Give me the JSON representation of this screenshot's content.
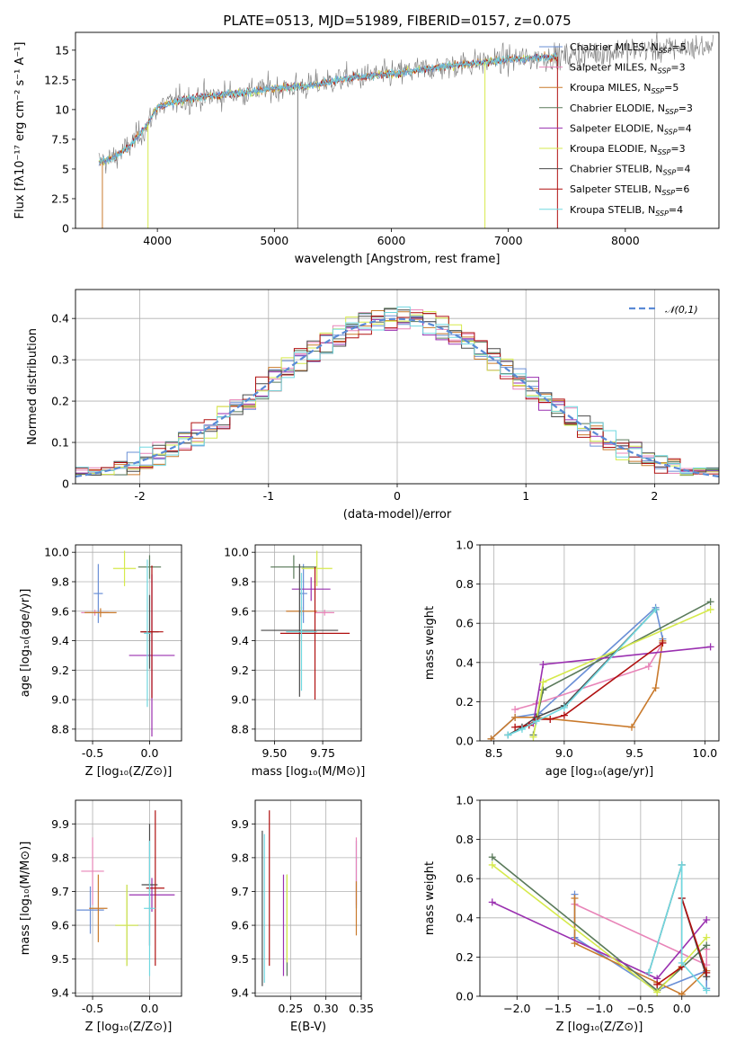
{
  "title": "PLATE=0513, MJD=51989, FIBERID=0157, z=0.075",
  "colors": {
    "Chabrier MILES": "#6a8fd6",
    "Salpeter MILES": "#e884b8",
    "Kroupa MILES": "#c97a2c",
    "Chabrier ELODIE": "#5a7a5a",
    "Salpeter ELODIE": "#9a30b0",
    "Kroupa ELODIE": "#d6ea4c",
    "Chabrier STELIB": "#4a4a4a",
    "Salpeter STELIB": "#b01010",
    "Kroupa STELIB": "#70d8e0",
    "gaussian": "#5a8ad6"
  },
  "legend": [
    {
      "model": "Chabrier MILES",
      "nssp": "5"
    },
    {
      "model": "Salpeter MILES",
      "nssp": "3"
    },
    {
      "model": "Kroupa MILES",
      "nssp": "5"
    },
    {
      "model": "Chabrier ELODIE",
      "nssp": "3"
    },
    {
      "model": "Salpeter ELODIE",
      "nssp": "4"
    },
    {
      "model": "Kroupa ELODIE",
      "nssp": "3"
    },
    {
      "model": "Chabrier STELIB",
      "nssp": "4"
    },
    {
      "model": "Salpeter STELIB",
      "nssp": "6"
    },
    {
      "model": "Kroupa STELIB",
      "nssp": "4"
    }
  ],
  "chart_data": [
    {
      "id": "spectrum",
      "type": "line",
      "xlabel": "wavelength [Angstrom, rest frame]",
      "ylabel": "Flux [fλ10⁻¹⁷ erg cm⁻² s⁻¹ A⁻¹]",
      "xlim": [
        3300,
        8800
      ],
      "ylim": [
        0,
        16.5
      ],
      "xticks": [
        4000,
        5000,
        6000,
        7000,
        8000
      ],
      "yticks": [
        0.0,
        2.5,
        5.0,
        7.5,
        10.0,
        12.5,
        15.0
      ],
      "grid": false,
      "continuum": {
        "x": [
          3500,
          3600,
          3750,
          3900,
          4000,
          4200,
          4500,
          4800,
          5000,
          5300,
          5600,
          6000,
          6500,
          7000,
          7500,
          8000,
          8500,
          8750
        ],
        "y": [
          5.6,
          5.8,
          6.8,
          8.5,
          10.2,
          10.8,
          11.2,
          11.5,
          11.8,
          12.0,
          12.6,
          13.0,
          13.7,
          14.2,
          14.5,
          15.0,
          15.2,
          15.3
        ]
      }
    },
    {
      "id": "residuals",
      "type": "line",
      "xlabel": "(data-model)/error",
      "ylabel": "Normed distribution",
      "xlim": [
        -2.5,
        2.5
      ],
      "ylim": [
        0,
        0.47
      ],
      "xticks": [
        -2,
        -1,
        0,
        1,
        2
      ],
      "yticks": [
        0.0,
        0.1,
        0.2,
        0.3,
        0.4
      ],
      "grid": true,
      "legend": "𝒩(0,1)",
      "bin_edges_from": -2.5,
      "bin_width": 0.1
    },
    {
      "id": "z-age",
      "type": "scatter",
      "xlabel": "Z [log₁₀(Z/Z⊙)]",
      "ylabel": "age  [log₁₀(age/yr)]",
      "xlim": [
        -0.65,
        0.28
      ],
      "ylim": [
        8.72,
        10.05
      ],
      "xticks": [
        "-0.5",
        "0.0"
      ],
      "yticks": [
        "8.8",
        "9.0",
        "9.2",
        "9.4",
        "9.6",
        "9.8",
        "10.0"
      ],
      "grid": true,
      "points": [
        {
          "model": "Chabrier MILES",
          "x": -0.45,
          "xerr": 0.04,
          "y": 9.72,
          "yerr": 0.2
        },
        {
          "model": "Salpeter MILES",
          "x": -0.48,
          "xerr": 0.12,
          "y": 9.59,
          "yerr": 0.02
        },
        {
          "model": "Kroupa MILES",
          "x": -0.43,
          "xerr": 0.14,
          "y": 9.59,
          "yerr": 0.03
        },
        {
          "model": "Chabrier ELODIE",
          "x": 0.0,
          "xerr": 0.1,
          "y": 9.9,
          "yerr": 0.08
        },
        {
          "model": "Salpeter ELODIE",
          "x": 0.02,
          "xerr": 0.2,
          "y": 9.3,
          "yerr": 0.55
        },
        {
          "model": "Kroupa ELODIE",
          "x": -0.22,
          "xerr": 0.1,
          "y": 9.89,
          "yerr": 0.12
        },
        {
          "model": "Chabrier STELIB",
          "x": 0.0,
          "xerr": 0.08,
          "y": 9.46,
          "yerr": 0.25
        },
        {
          "model": "Salpeter STELIB",
          "x": 0.02,
          "xerr": 0.1,
          "y": 9.46,
          "yerr": 0.45
        },
        {
          "model": "Kroupa STELIB",
          "x": -0.02,
          "xerr": 0.03,
          "y": 9.45,
          "yerr": 0.5
        }
      ]
    },
    {
      "id": "mass-age",
      "type": "scatter",
      "xlabel": "mass [log₁₀(M/M⊙)]",
      "ylabel": "",
      "xlim": [
        9.4,
        9.95
      ],
      "ylim": [
        8.72,
        10.05
      ],
      "xticks": [
        "9.50",
        "9.75"
      ],
      "yticks": [
        "8.8",
        "9.0",
        "9.2",
        "9.4",
        "9.6",
        "9.8",
        "10.0"
      ],
      "grid": true,
      "points": [
        {
          "model": "Chabrier MILES",
          "x": 9.65,
          "xerr": 0.02,
          "y": 9.72,
          "yerr": 0.2
        },
        {
          "model": "Salpeter MILES",
          "x": 9.76,
          "xerr": 0.05,
          "y": 9.59,
          "yerr": 0.02
        },
        {
          "model": "Kroupa MILES",
          "x": 9.64,
          "xerr": 0.08,
          "y": 9.6,
          "yerr": 0.03
        },
        {
          "model": "Chabrier ELODIE",
          "x": 9.6,
          "xerr": 0.12,
          "y": 9.9,
          "yerr": 0.08
        },
        {
          "model": "Salpeter ELODIE",
          "x": 9.69,
          "xerr": 0.1,
          "y": 9.75,
          "yerr": 0.08
        },
        {
          "model": "Kroupa ELODIE",
          "x": 9.72,
          "xerr": 0.08,
          "y": 9.89,
          "yerr": 0.12
        },
        {
          "model": "Chabrier STELIB",
          "x": 9.63,
          "xerr": 0.2,
          "y": 9.47,
          "yerr": 0.45
        },
        {
          "model": "Salpeter STELIB",
          "x": 9.71,
          "xerr": 0.18,
          "y": 9.45,
          "yerr": 0.45
        },
        {
          "model": "Kroupa STELIB",
          "x": 9.64,
          "xerr": 0.08,
          "y": 9.46,
          "yerr": 0.4
        }
      ]
    },
    {
      "id": "age-weight",
      "type": "line",
      "xlabel": "age  [log₁₀(age/yr)]",
      "ylabel": "mass weight",
      "xlim": [
        8.4,
        10.1
      ],
      "ylim": [
        0,
        1.0
      ],
      "xticks": [
        "8.5",
        "9.0",
        "9.5",
        "10.0"
      ],
      "yticks": [
        "0.0",
        "0.2",
        "0.4",
        "0.6",
        "0.8",
        "1.0"
      ],
      "grid": true,
      "series": [
        {
          "model": "Chabrier MILES",
          "x": [
            8.48,
            8.65,
            8.82,
            9.65,
            9.7
          ],
          "y": [
            0.01,
            0.12,
            0.14,
            0.68,
            0.52
          ]
        },
        {
          "model": "Salpeter MILES",
          "x": [
            8.65,
            8.8,
            9.6,
            9.7
          ],
          "y": [
            0.16,
            0.19,
            0.38,
            0.5
          ]
        },
        {
          "model": "Kroupa MILES",
          "x": [
            8.48,
            8.65,
            8.8,
            9.48,
            9.65,
            9.7
          ],
          "y": [
            0.01,
            0.12,
            0.12,
            0.07,
            0.27,
            0.51
          ]
        },
        {
          "model": "Chabrier ELODIE",
          "x": [
            8.78,
            8.85,
            10.04
          ],
          "y": [
            0.03,
            0.26,
            0.71
          ]
        },
        {
          "model": "Salpeter ELODIE",
          "x": [
            8.78,
            8.85,
            10.04
          ],
          "y": [
            0.09,
            0.39,
            0.48
          ]
        },
        {
          "model": "Kroupa ELODIE",
          "x": [
            8.78,
            8.85,
            10.04
          ],
          "y": [
            0.02,
            0.3,
            0.67
          ]
        },
        {
          "model": "Chabrier STELIB",
          "x": [
            8.6,
            8.7,
            8.8,
            9.0,
            9.65
          ],
          "y": [
            0.03,
            0.07,
            0.12,
            0.18,
            0.67
          ]
        },
        {
          "model": "Salpeter STELIB",
          "x": [
            8.65,
            8.75,
            8.8,
            8.9,
            9.0,
            9.7
          ],
          "y": [
            0.07,
            0.08,
            0.11,
            0.11,
            0.13,
            0.5
          ]
        },
        {
          "model": "Kroupa STELIB",
          "x": [
            8.6,
            8.7,
            8.8,
            9.0,
            9.65
          ],
          "y": [
            0.03,
            0.06,
            0.1,
            0.17,
            0.67
          ]
        }
      ]
    },
    {
      "id": "z-mass",
      "type": "scatter",
      "xlabel": "Z [log₁₀(Z/Z⊙)]",
      "ylabel": "mass [log₁₀(M/M⊙)]",
      "xlim": [
        -0.65,
        0.28
      ],
      "ylim": [
        9.39,
        9.97
      ],
      "xticks": [
        "-0.5",
        "0.0"
      ],
      "yticks": [
        "9.4",
        "9.5",
        "9.6",
        "9.7",
        "9.8",
        "9.9"
      ],
      "grid": true,
      "points": [
        {
          "model": "Chabrier MILES",
          "x": -0.52,
          "xerr": 0.12,
          "y": 9.645,
          "yerr": 0.07
        },
        {
          "model": "Salpeter MILES",
          "x": -0.5,
          "xerr": 0.1,
          "y": 9.76,
          "yerr": 0.1
        },
        {
          "model": "Kroupa MILES",
          "x": -0.45,
          "xerr": 0.08,
          "y": 9.65,
          "yerr": 0.1
        },
        {
          "model": "Chabrier ELODIE",
          "x": -0.2,
          "xerr": 0.1,
          "y": 9.6,
          "yerr": 0.12
        },
        {
          "model": "Salpeter ELODIE",
          "x": 0.02,
          "xerr": 0.2,
          "y": 9.69,
          "yerr": 0.05
        },
        {
          "model": "Kroupa ELODIE",
          "x": -0.2,
          "xerr": 0.1,
          "y": 9.6,
          "yerr": 0.12
        },
        {
          "model": "Chabrier STELIB",
          "x": 0.0,
          "xerr": 0.07,
          "y": 9.72,
          "yerr": 0.18
        },
        {
          "model": "Salpeter STELIB",
          "x": 0.05,
          "xerr": 0.08,
          "y": 9.71,
          "yerr": 0.23
        },
        {
          "model": "Kroupa STELIB",
          "x": 0.0,
          "xerr": 0.05,
          "y": 9.65,
          "yerr": 0.2
        }
      ]
    },
    {
      "id": "ebv-mass",
      "type": "scatter",
      "xlabel": "E(B-V)",
      "ylabel": "",
      "xlim": [
        0.2,
        0.35
      ],
      "ylim": [
        9.39,
        9.97
      ],
      "xticks": [
        "0.25",
        "0.30",
        "0.35"
      ],
      "yticks": [
        "9.4",
        "9.5",
        "9.6",
        "9.7",
        "9.8",
        "9.9"
      ],
      "grid": true,
      "points": [
        {
          "model": "Chabrier MILES",
          "x": 0.343,
          "y": 9.75,
          "yerr": 0.1
        },
        {
          "model": "Salpeter MILES",
          "x": 0.343,
          "y": 9.76,
          "yerr": 0.1
        },
        {
          "model": "Kroupa MILES",
          "x": 0.343,
          "y": 9.65,
          "yerr": 0.08
        },
        {
          "model": "Chabrier ELODIE",
          "x": 0.245,
          "y": 9.6,
          "yerr": 0.15
        },
        {
          "model": "Salpeter ELODIE",
          "x": 0.24,
          "y": 9.6,
          "yerr": 0.15
        },
        {
          "model": "Kroupa ELODIE",
          "x": 0.245,
          "y": 9.62,
          "yerr": 0.13
        },
        {
          "model": "Chabrier STELIB",
          "x": 0.21,
          "y": 9.65,
          "yerr": 0.23
        },
        {
          "model": "Salpeter STELIB",
          "x": 0.22,
          "y": 9.71,
          "yerr": 0.23
        },
        {
          "model": "Kroupa STELIB",
          "x": 0.213,
          "y": 9.65,
          "yerr": 0.22
        }
      ]
    },
    {
      "id": "z-weight",
      "type": "line",
      "xlabel": "Z [log₁₀(Z/Z⊙)]",
      "ylabel": "mass weight",
      "xlim": [
        -2.45,
        0.45
      ],
      "ylim": [
        0,
        1.0
      ],
      "xticks": [
        "−2.0",
        "−1.5",
        "−1.0",
        "−0.5",
        "0.0"
      ],
      "yticks": [
        "0.0",
        "0.2",
        "0.4",
        "0.6",
        "0.8",
        "1.0"
      ],
      "grid": true,
      "series": [
        {
          "model": "Chabrier MILES",
          "x": [
            -1.3,
            -1.3,
            -0.3,
            0.3,
            0.3
          ],
          "y": [
            0.52,
            0.3,
            0.03,
            0.13,
            0.04
          ]
        },
        {
          "model": "Salpeter MILES",
          "x": [
            -1.3,
            0.3,
            0.3
          ],
          "y": [
            0.47,
            0.16,
            0.24
          ]
        },
        {
          "model": "Kroupa MILES",
          "x": [
            -1.3,
            -1.3,
            -0.3,
            0.0,
            0.3
          ],
          "y": [
            0.5,
            0.27,
            0.07,
            0.01,
            0.13
          ]
        },
        {
          "model": "Chabrier ELODIE",
          "x": [
            -2.3,
            -0.3,
            0.3
          ],
          "y": [
            0.71,
            0.03,
            0.26
          ]
        },
        {
          "model": "Salpeter ELODIE",
          "x": [
            -2.3,
            -0.3,
            0.3
          ],
          "y": [
            0.48,
            0.09,
            0.39
          ]
        },
        {
          "model": "Kroupa ELODIE",
          "x": [
            -2.3,
            -0.3,
            0.3
          ],
          "y": [
            0.67,
            0.02,
            0.3
          ]
        },
        {
          "model": "Chabrier STELIB",
          "x": [
            -0.4,
            0.0,
            0.0,
            0.3
          ],
          "y": [
            0.12,
            0.67,
            0.5,
            0.1
          ]
        },
        {
          "model": "Salpeter STELIB",
          "x": [
            -0.3,
            0.0,
            0.0,
            0.3
          ],
          "y": [
            0.06,
            0.15,
            0.5,
            0.12
          ]
        },
        {
          "model": "Kroupa STELIB",
          "x": [
            -0.4,
            0.0,
            0.0,
            0.3
          ],
          "y": [
            0.12,
            0.67,
            0.17,
            0.03
          ]
        }
      ]
    }
  ]
}
